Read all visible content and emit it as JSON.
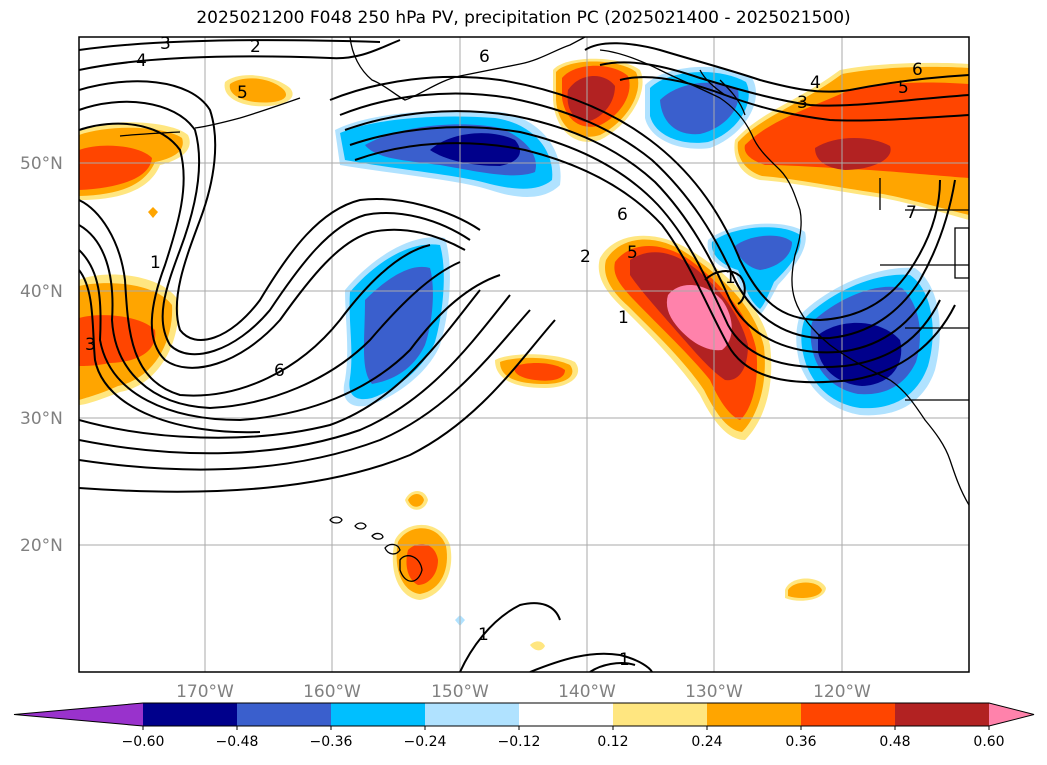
{
  "title": "2025021200 F048 250 hPa PV, precipitation PC (2025021400 - 2025021500)",
  "map": {
    "lat_labels": [
      "50°N",
      "40°N",
      "30°N",
      "20°N"
    ],
    "lon_labels": [
      "170°W",
      "160°W",
      "150°W",
      "140°W",
      "130°W",
      "120°W"
    ],
    "contour_labels": [
      "3",
      "2",
      "4",
      "6",
      "5",
      "4",
      "3",
      "6",
      "5",
      "6",
      "2",
      "5",
      "1",
      "1",
      "3",
      "6",
      "1",
      "1",
      "1",
      "7"
    ]
  },
  "colorbar": {
    "ticks": [
      "−0.60",
      "−0.48",
      "−0.36",
      "−0.24",
      "−0.12",
      "0.12",
      "0.24",
      "0.36",
      "0.48",
      "0.60"
    ],
    "colors": [
      "#9932cc",
      "#00008b",
      "#3a5fcd",
      "#00bfff",
      "#b0e2ff",
      "#ffffff",
      "#ffe680",
      "#ffa500",
      "#ff4500",
      "#b22222",
      "#ff82ab"
    ]
  }
}
